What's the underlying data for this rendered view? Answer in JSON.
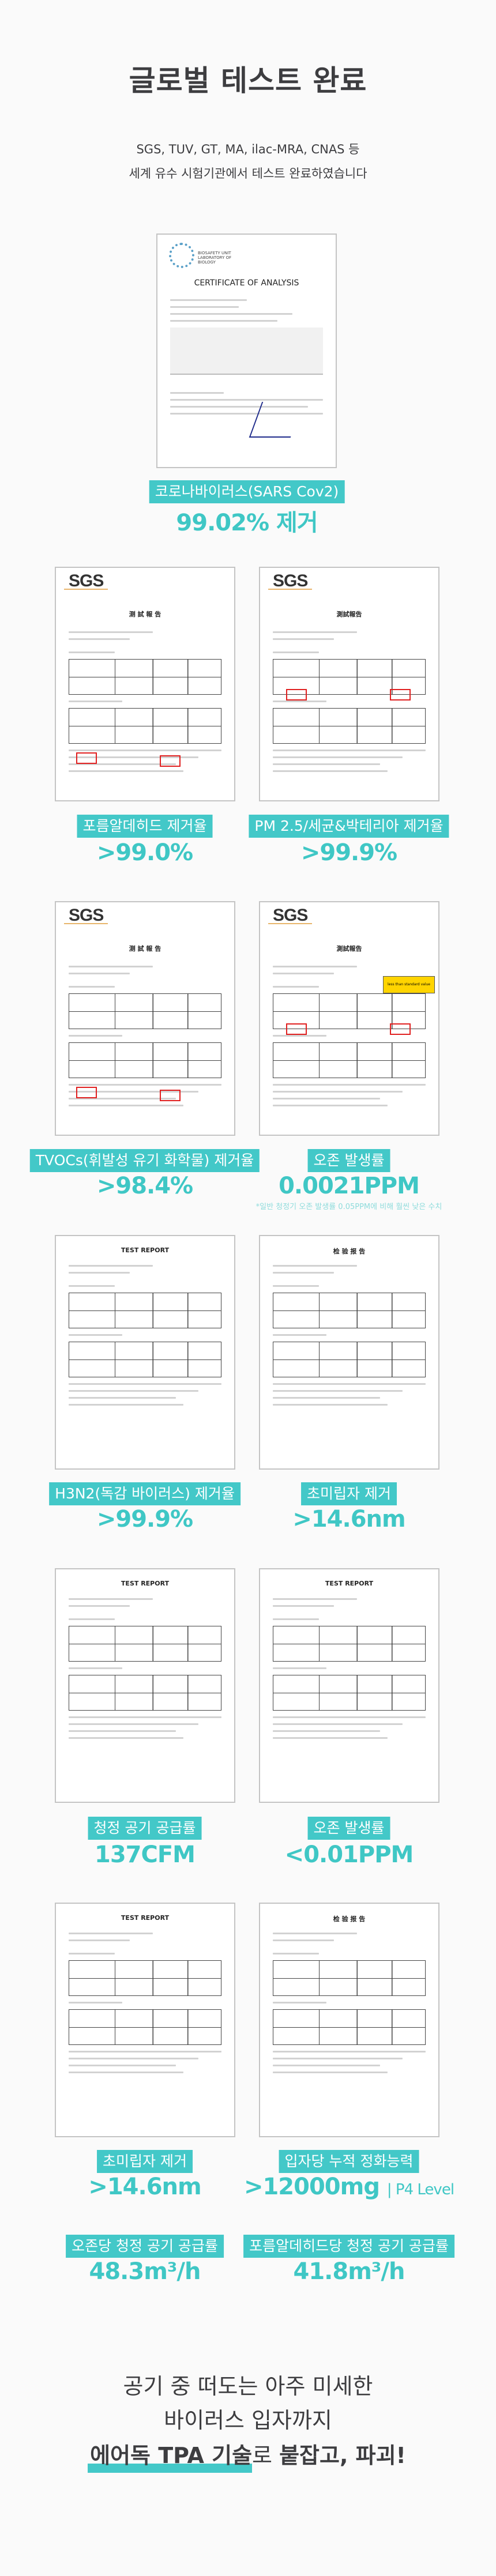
{
  "header": {
    "title": "글로벌 테스트 완료",
    "subtitle_line1": "SGS, TUV, GT, MA, ilac-MRA, CNAS 등",
    "subtitle_line2": "세계 유수 시험기관에서 테스트 완료하였습니다"
  },
  "certificate": {
    "doc_heading": "CERTIFICATE OF ANALYSIS",
    "doc_org": "BIOSAFETY UNIT LABORATORY OF BIOLOGY",
    "label": "코로나바이러스(SARS Cov2)",
    "value": "99.02% 제거"
  },
  "results": [
    {
      "doc_logo": "SGS",
      "doc_heading": "测 試 報 告",
      "label": "포름알데히드 제거율",
      "value": ">99.0%"
    },
    {
      "doc_logo": "SGS",
      "doc_heading": "測試報告",
      "label": "PM 2.5/세균&박테리아 제거율",
      "value": ">99.9%"
    },
    {
      "doc_logo": "SGS",
      "doc_heading": "测 試 報 告",
      "label": "TVOCs(휘발성 유기 화학물) 제거율",
      "value": ">98.4%"
    },
    {
      "doc_logo": "SGS",
      "doc_heading": "測試報告",
      "doc_stamp": "less than standard value 0.05PPM",
      "label": "오존 발생률",
      "value": "0.0021PPM",
      "note": "*일반 청정기 오존 발생률 0.05PPM에 비해 훨씬 낮은 수치"
    },
    {
      "doc_heading": "TEST REPORT",
      "label": "H3N2(독감 바이러스) 제거율",
      "value": ">99.9%"
    },
    {
      "doc_heading": "检 验 报 告",
      "label": "초미립자 제거",
      "value": ">14.6nm"
    },
    {
      "doc_heading": "TEST REPORT",
      "label": "청정 공기 공급률",
      "value": "137CFM"
    },
    {
      "doc_heading": "TEST REPORT",
      "label": "오존 발생률",
      "value": "<0.01PPM"
    },
    {
      "doc_heading": "TEST REPORT",
      "label": "초미립자 제거",
      "value": ">14.6nm"
    },
    {
      "doc_heading": "检 验 报 告",
      "label": "입자당 누적 정화능력",
      "value": ">12000mg",
      "value_suffix": "| P4 Level"
    },
    {
      "label": "오존당 청정 공기 공급률",
      "value": "48.3m³/h"
    },
    {
      "label": "포름알데히드당 청정 공기 공급률",
      "value": "41.8m³/h"
    }
  ],
  "closing": {
    "line1": "공기 중 떠도는 아주 미세한",
    "line2": "바이러스 입자까지",
    "line3_highlight": "에어독 TPA 기술",
    "line3_mid": "로 ",
    "line3_end": "붙잡고, 파괴!"
  },
  "colors": {
    "accent": "#43c8c8",
    "value_text": "#3fc7c5",
    "heading_text": "#3d3d40"
  }
}
